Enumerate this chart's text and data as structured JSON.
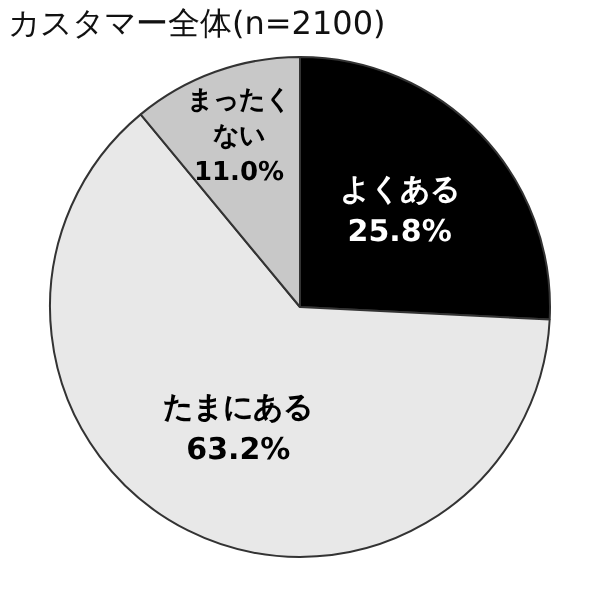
{
  "chart_data": {
    "type": "pie",
    "title": "カスタマー全体(n=2100)",
    "categories": [
      "よくある",
      "たまにある",
      "まったくない"
    ],
    "values": [
      25.8,
      63.2,
      11.0
    ],
    "value_labels": [
      "25.8%",
      "63.2%",
      "11.0%"
    ],
    "colors": [
      "#000000",
      "#e8e8e8",
      "#c8c8c8"
    ],
    "legend": false
  }
}
